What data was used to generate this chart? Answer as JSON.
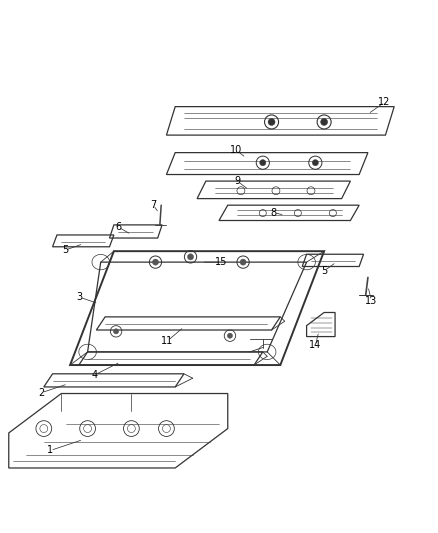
{
  "title": "",
  "background_color": "#ffffff",
  "line_color": "#333333",
  "label_color": "#000000",
  "fig_width": 4.38,
  "fig_height": 5.33,
  "dpi": 100
}
